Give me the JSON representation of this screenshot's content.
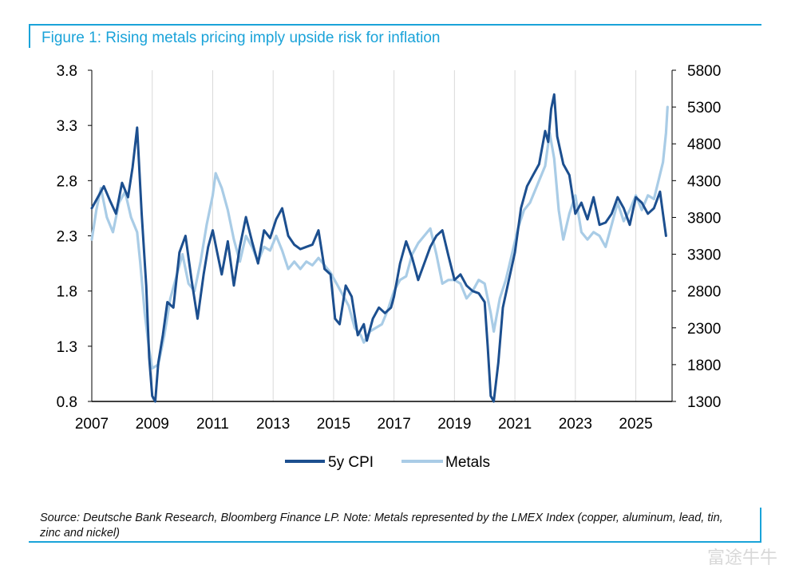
{
  "title": "Figure 1: Rising metals pricing imply upside risk for inflation",
  "source": "Source: Deutsche Bank Research, Bloomberg Finance LP. Note: Metals represented by the LMEX Index (copper, aluminum, lead, tin, zinc and nickel)",
  "watermark": "富途牛牛",
  "colors": {
    "accent": "#1aa3d9",
    "cpi": "#1c4f8f",
    "metals": "#a9cce6",
    "grid": "#d9d9d9"
  },
  "chart_data": {
    "type": "line",
    "title": "Figure 1: Rising metals pricing imply upside risk for inflation",
    "x_ticks": [
      "2007",
      "2009",
      "2011",
      "2013",
      "2015",
      "2017",
      "2019",
      "2021",
      "2023",
      "2025"
    ],
    "x_range": [
      2007,
      2026.2
    ],
    "y_left": {
      "range": [
        0.8,
        3.8
      ],
      "ticks": [
        "3.8",
        "3.3",
        "2.8",
        "2.3",
        "1.8",
        "1.3",
        "0.8"
      ]
    },
    "y_right": {
      "range": [
        1300,
        5800
      ],
      "ticks": [
        "5800",
        "5300",
        "4800",
        "4300",
        "3800",
        "3300",
        "2800",
        "2300",
        "1800",
        "1300"
      ]
    },
    "grid": "vertical",
    "legend": "bottom",
    "series": [
      {
        "name": "5y CPI",
        "axis": "left",
        "x": [
          2007.0,
          2007.2,
          2007.4,
          2007.6,
          2007.8,
          2008.0,
          2008.2,
          2008.35,
          2008.5,
          2008.65,
          2008.8,
          2008.9,
          2009.0,
          2009.1,
          2009.2,
          2009.35,
          2009.5,
          2009.7,
          2009.9,
          2010.1,
          2010.3,
          2010.5,
          2010.7,
          2010.85,
          2011.0,
          2011.15,
          2011.3,
          2011.5,
          2011.7,
          2011.9,
          2012.1,
          2012.3,
          2012.5,
          2012.7,
          2012.9,
          2013.1,
          2013.3,
          2013.5,
          2013.7,
          2013.9,
          2014.1,
          2014.3,
          2014.5,
          2014.7,
          2014.9,
          2015.05,
          2015.2,
          2015.4,
          2015.6,
          2015.8,
          2016.0,
          2016.1,
          2016.3,
          2016.5,
          2016.7,
          2016.9,
          2017.0,
          2017.2,
          2017.4,
          2017.6,
          2017.8,
          2018.0,
          2018.2,
          2018.4,
          2018.6,
          2018.8,
          2019.0,
          2019.2,
          2019.4,
          2019.6,
          2019.8,
          2020.0,
          2020.1,
          2020.2,
          2020.3,
          2020.45,
          2020.6,
          2020.8,
          2021.0,
          2021.2,
          2021.4,
          2021.6,
          2021.8,
          2022.0,
          2022.1,
          2022.2,
          2022.3,
          2022.4,
          2022.6,
          2022.8,
          2023.0,
          2023.2,
          2023.4,
          2023.6,
          2023.8,
          2024.0,
          2024.2,
          2024.4,
          2024.6,
          2024.8,
          2025.0,
          2025.2,
          2025.4,
          2025.6,
          2025.8,
          2025.9,
          2026.0
        ],
        "values": [
          2.55,
          2.65,
          2.75,
          2.62,
          2.5,
          2.78,
          2.65,
          2.92,
          3.28,
          2.5,
          1.85,
          1.2,
          0.85,
          0.8,
          1.15,
          1.4,
          1.7,
          1.65,
          2.15,
          2.3,
          1.9,
          1.55,
          1.95,
          2.2,
          2.35,
          2.15,
          1.95,
          2.25,
          1.85,
          2.2,
          2.47,
          2.25,
          2.05,
          2.35,
          2.28,
          2.45,
          2.55,
          2.3,
          2.22,
          2.18,
          2.2,
          2.22,
          2.35,
          2.0,
          1.95,
          1.55,
          1.5,
          1.85,
          1.75,
          1.4,
          1.5,
          1.35,
          1.55,
          1.65,
          1.6,
          1.65,
          1.75,
          2.05,
          2.25,
          2.1,
          1.9,
          2.05,
          2.2,
          2.3,
          2.35,
          2.12,
          1.9,
          1.95,
          1.85,
          1.8,
          1.78,
          1.7,
          1.3,
          0.85,
          0.8,
          1.15,
          1.65,
          1.9,
          2.15,
          2.55,
          2.75,
          2.85,
          2.95,
          3.25,
          3.15,
          3.45,
          3.58,
          3.2,
          2.95,
          2.85,
          2.5,
          2.6,
          2.45,
          2.65,
          2.4,
          2.42,
          2.5,
          2.65,
          2.55,
          2.4,
          2.65,
          2.6,
          2.5,
          2.55,
          2.7,
          2.5,
          2.3
        ]
      },
      {
        "name": "Metals",
        "axis": "right",
        "x": [
          2007.0,
          2007.15,
          2007.3,
          2007.5,
          2007.7,
          2007.9,
          2008.1,
          2008.3,
          2008.5,
          2008.6,
          2008.75,
          2008.9,
          2009.0,
          2009.2,
          2009.4,
          2009.6,
          2009.8,
          2010.0,
          2010.2,
          2010.4,
          2010.6,
          2010.8,
          2011.0,
          2011.1,
          2011.3,
          2011.5,
          2011.7,
          2011.9,
          2012.1,
          2012.3,
          2012.5,
          2012.7,
          2012.9,
          2013.1,
          2013.3,
          2013.5,
          2013.7,
          2013.9,
          2014.1,
          2014.3,
          2014.5,
          2014.7,
          2014.9,
          2015.1,
          2015.3,
          2015.5,
          2015.7,
          2015.9,
          2016.0,
          2016.2,
          2016.4,
          2016.6,
          2016.8,
          2017.0,
          2017.2,
          2017.4,
          2017.6,
          2017.8,
          2018.0,
          2018.2,
          2018.4,
          2018.6,
          2018.8,
          2019.0,
          2019.2,
          2019.4,
          2019.6,
          2019.8,
          2020.0,
          2020.2,
          2020.3,
          2020.5,
          2020.7,
          2020.9,
          2021.1,
          2021.3,
          2021.5,
          2021.7,
          2021.9,
          2022.0,
          2022.15,
          2022.3,
          2022.45,
          2022.6,
          2022.8,
          2023.0,
          2023.2,
          2023.4,
          2023.6,
          2023.8,
          2024.0,
          2024.2,
          2024.4,
          2024.6,
          2024.8,
          2025.0,
          2025.2,
          2025.4,
          2025.6,
          2025.75,
          2025.9,
          2026.0,
          2026.05
        ],
        "values": [
          3500,
          3900,
          4200,
          3800,
          3600,
          4000,
          4150,
          3800,
          3600,
          3200,
          2500,
          2000,
          1750,
          1800,
          2200,
          2700,
          3000,
          3300,
          2900,
          2800,
          3200,
          3700,
          4100,
          4400,
          4200,
          3900,
          3500,
          3200,
          3550,
          3400,
          3200,
          3400,
          3350,
          3550,
          3350,
          3100,
          3200,
          3100,
          3200,
          3150,
          3250,
          3150,
          3050,
          2900,
          2750,
          2600,
          2300,
          2200,
          2100,
          2250,
          2300,
          2350,
          2550,
          2800,
          2950,
          3000,
          3300,
          3450,
          3550,
          3650,
          3300,
          2900,
          2950,
          2950,
          2900,
          2700,
          2800,
          2950,
          2900,
          2500,
          2250,
          2700,
          2950,
          3300,
          3650,
          3900,
          4000,
          4200,
          4400,
          4500,
          4950,
          4600,
          3900,
          3500,
          3850,
          4100,
          3600,
          3500,
          3600,
          3550,
          3400,
          3700,
          4000,
          3750,
          3900,
          4100,
          3900,
          4100,
          4050,
          4300,
          4550,
          4950,
          5300
        ]
      }
    ]
  }
}
